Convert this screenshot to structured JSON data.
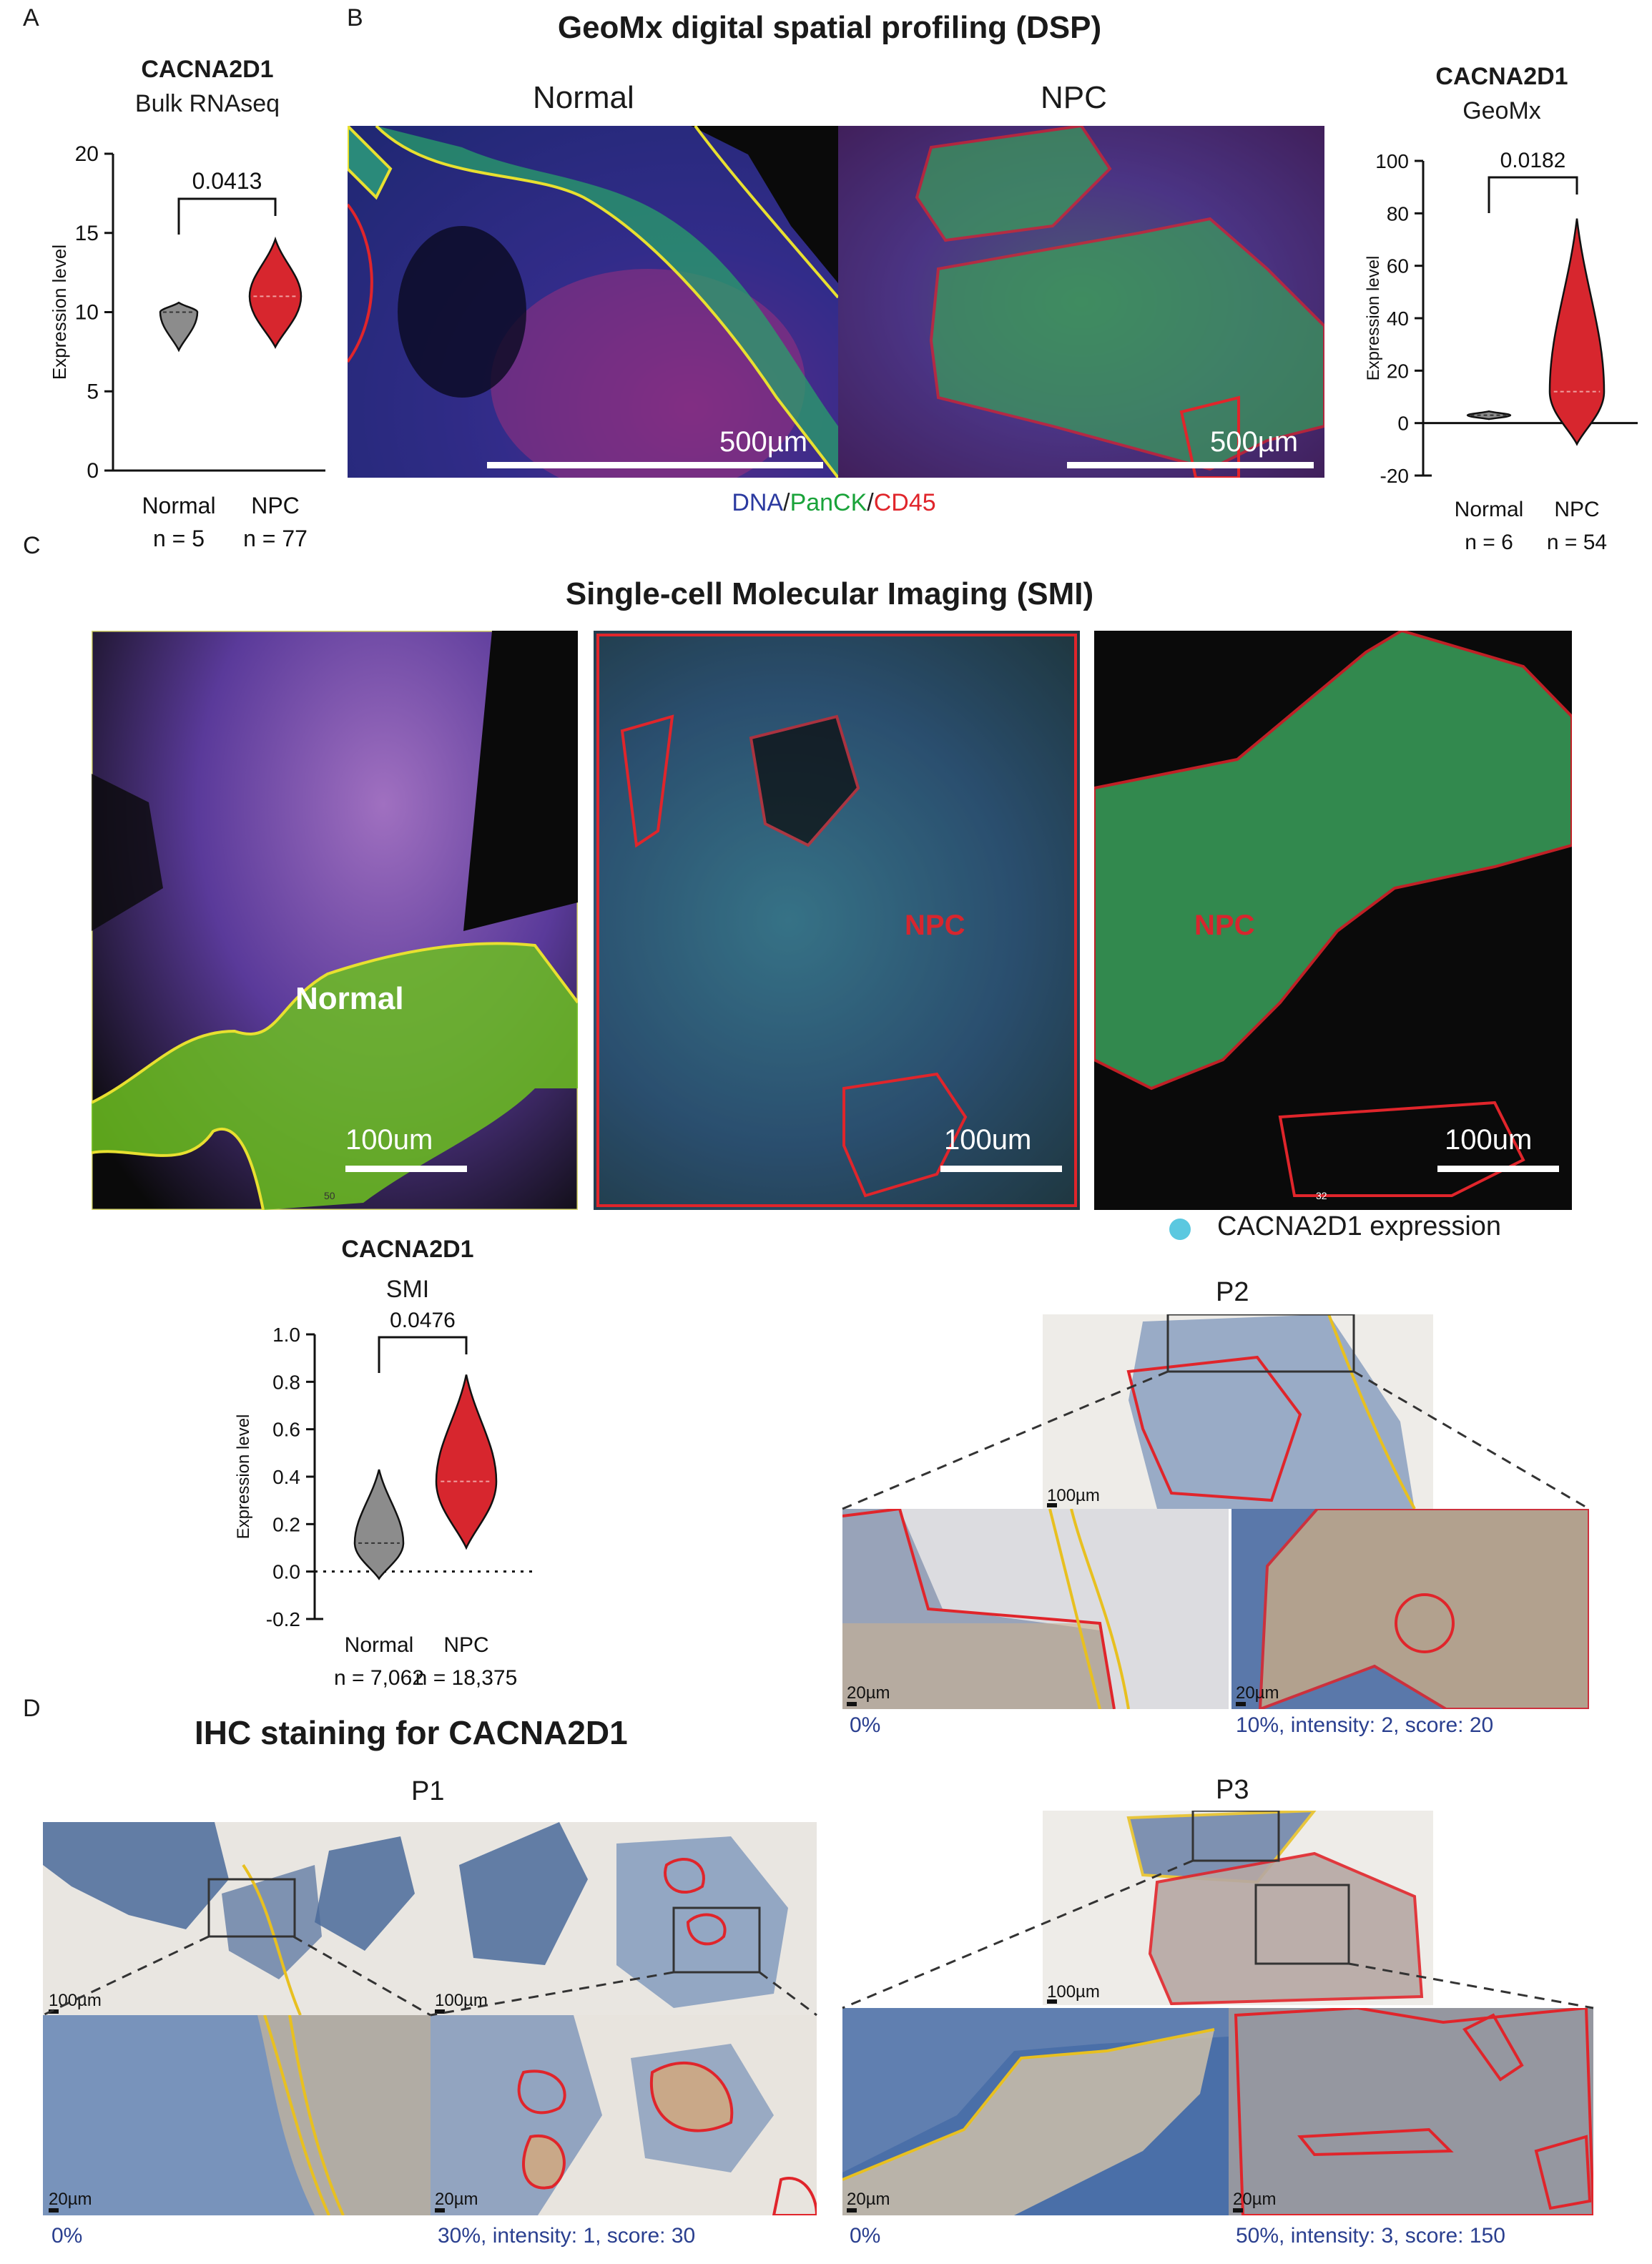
{
  "panels": {
    "A": "A",
    "B": "B",
    "C": "C",
    "D": "D"
  },
  "chart_data": [
    {
      "type": "violin",
      "title": "CACNA2D1",
      "subtitle": "Bulk RNAseq",
      "ylabel": "Expression level",
      "ylim": [
        0,
        20
      ],
      "yticks": [
        "0",
        "5",
        "10",
        "15",
        "20"
      ],
      "categories": [
        "Normal",
        "NPC"
      ],
      "n_labels": [
        "n = 5",
        "n = 77"
      ],
      "medians": [
        10.0,
        11.0
      ],
      "ranges": [
        [
          7.6,
          10.6
        ],
        [
          7.8,
          14.6
        ]
      ],
      "pvalue": "0.0413",
      "colors": [
        "#8c8c8c",
        "#d7262e"
      ]
    },
    {
      "type": "violin",
      "title": "CACNA2D1",
      "subtitle": "GeoMx",
      "ylabel": "Expression level",
      "ylim": [
        -20,
        100
      ],
      "yticks": [
        "-20",
        "0",
        "20",
        "40",
        "60",
        "80",
        "100"
      ],
      "categories": [
        "Normal",
        "NPC"
      ],
      "n_labels": [
        "n = 6",
        "n = 54"
      ],
      "medians": [
        3.0,
        12.0
      ],
      "ranges": [
        [
          1.5,
          4.5
        ],
        [
          -8,
          78
        ]
      ],
      "pvalue": "0.0182",
      "colors": [
        "#8c8c8c",
        "#d7262e"
      ]
    },
    {
      "type": "violin",
      "title": "CACNA2D1",
      "subtitle": "SMI",
      "ylabel": "Expression level",
      "ylim": [
        -0.2,
        1.0
      ],
      "yticks": [
        "-0.2",
        "0.0",
        "0.2",
        "0.4",
        "0.6",
        "0.8",
        "1.0"
      ],
      "categories": [
        "Normal",
        "NPC"
      ],
      "n_labels": [
        "n = 7,062",
        "n = 18,375"
      ],
      "medians": [
        0.12,
        0.38
      ],
      "ranges": [
        [
          -0.03,
          0.43
        ],
        [
          0.1,
          0.83
        ]
      ],
      "pvalue": "0.0476",
      "colors": [
        "#8c8c8c",
        "#d7262e"
      ]
    }
  ],
  "dsp": {
    "title": "GeoMx digital spatial profiling (DSP)",
    "label_normal": "Normal",
    "label_npc": "NPC",
    "scale1": "500µm",
    "scale2": "500µm",
    "legend": [
      {
        "text": "DNA",
        "color": "#2b3aa0"
      },
      {
        "text": "/",
        "color": "#222"
      },
      {
        "text": "PanCK",
        "color": "#1aa33a"
      },
      {
        "text": "/",
        "color": "#222"
      },
      {
        "text": "CD45",
        "color": "#e0252b"
      }
    ]
  },
  "smi": {
    "title": "Single-cell Molecular Imaging (SMI)",
    "label_normal": "Normal",
    "label_npc1": "NPC",
    "label_npc2": "NPC",
    "scale": "100um",
    "legend": "CACNA2D1 expression",
    "legend_color": "#5bc8e0",
    "tiny1": "50",
    "tiny2": "32"
  },
  "ihc": {
    "title": "IHC staining for CACNA2D1",
    "p1": "P1",
    "p2": "P2",
    "p3": "P3",
    "s100": "100µm",
    "s20": "20µm",
    "cap_p1_left": "0%",
    "cap_p1_right": "30%, intensity: 1, score: 30",
    "cap_p2_left": "0%",
    "cap_p2_right": "10%, intensity: 2, score: 20",
    "cap_p3_left": "0%",
    "cap_p3_right": "50%, intensity: 3, score: 150"
  }
}
